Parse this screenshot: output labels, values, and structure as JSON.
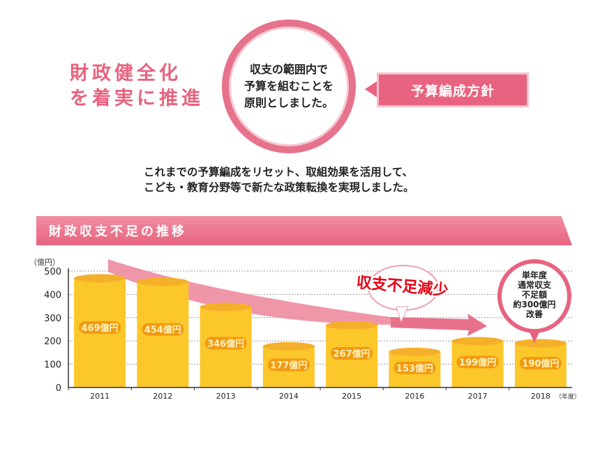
{
  "header": {
    "title_line1": "財政健全化",
    "title_line2": "を着実に推進",
    "circle_lines": [
      "収支の範囲内で",
      "予算を組むことを",
      "原則としました。"
    ],
    "banner": "予算編成方針",
    "desc_lines": [
      "これまでの予算編成をリセット、取組効果を活用して、",
      "こども・教育分野等で新たな政策転換を実現しました。"
    ]
  },
  "section_title": "財政収支不足の推移",
  "colors": {
    "pink": "#e8637f",
    "bar": "#fbc72a",
    "bar_top": "#f5b02b",
    "label_bg": "#f29a0f",
    "callout_red": "#e60012"
  },
  "chart_data": {
    "type": "bar",
    "categories": [
      "2011",
      "2012",
      "2013",
      "2014",
      "2015",
      "2016",
      "2017",
      "2018"
    ],
    "values": [
      469,
      454,
      346,
      177,
      267,
      153,
      199,
      190
    ],
    "value_labels": [
      "469億円",
      "454億円",
      "346億円",
      "177億円",
      "267億円",
      "153億円",
      "199億円",
      "190億円"
    ],
    "ylabel": "（億円）",
    "xlabel": "（年度）",
    "ylim": [
      0,
      500
    ],
    "yticks": [
      0,
      100,
      200,
      300,
      400,
      500
    ],
    "grid": true,
    "annotations": {
      "trend": "収支不足減少",
      "callout": [
        "単年度",
        "通常収支",
        "不足額",
        "約300億円",
        "改善"
      ]
    }
  }
}
